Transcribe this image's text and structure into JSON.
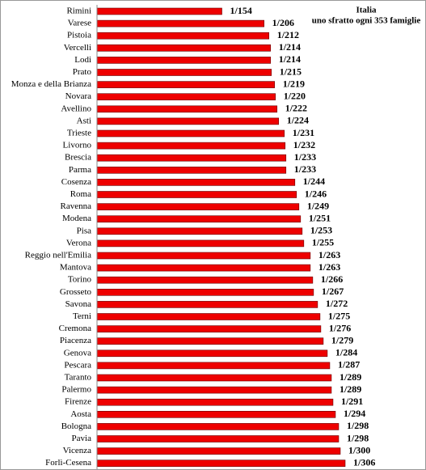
{
  "chart_data": {
    "type": "hbar",
    "annotations": [
      "Italia",
      "uno sfratto ogni 353 famiglie"
    ],
    "categories": [
      "Rimini",
      "Varese",
      "Pistoia",
      "Vercelli",
      "Lodi",
      "Prato",
      "Monza e della Brianza",
      "Novara",
      "Avellino",
      "Asti",
      "Trieste",
      "Livorno",
      "Brescia",
      "Parma",
      "Cosenza",
      "Roma",
      "Ravenna",
      "Modena",
      "Pisa",
      "Verona",
      "Reggio nell'Emilia",
      "Mantova",
      "Torino",
      "Grosseto",
      "Savona",
      "Terni",
      "Cremona",
      "Piacenza",
      "Genova",
      "Pescara",
      "Taranto",
      "Palermo",
      "Firenze",
      "Aosta",
      "Bologna",
      "Pavia",
      "Vicenza",
      "Forlì-Cesena"
    ],
    "values": [
      154,
      206,
      212,
      214,
      214,
      215,
      219,
      220,
      222,
      224,
      231,
      232,
      233,
      233,
      244,
      246,
      249,
      251,
      253,
      255,
      263,
      263,
      266,
      267,
      272,
      275,
      276,
      279,
      284,
      287,
      289,
      289,
      291,
      294,
      298,
      298,
      300,
      306
    ],
    "value_labels": [
      "1/154",
      "1/206",
      "1/212",
      "1/214",
      "1/214",
      "1/215",
      "1/219",
      "1/220",
      "1/222",
      "1/224",
      "1/231",
      "1/232",
      "1/233",
      "1/233",
      "1/244",
      "1/246",
      "1/249",
      "1/251",
      "1/253",
      "1/255",
      "1/263",
      "1/263",
      "1/266",
      "1/267",
      "1/272",
      "1/275",
      "1/276",
      "1/279",
      "1/284",
      "1/287",
      "1/289",
      "1/289",
      "1/291",
      "1/294",
      "1/298",
      "1/298",
      "1/300",
      "1/306"
    ],
    "color": "#ee0000"
  }
}
